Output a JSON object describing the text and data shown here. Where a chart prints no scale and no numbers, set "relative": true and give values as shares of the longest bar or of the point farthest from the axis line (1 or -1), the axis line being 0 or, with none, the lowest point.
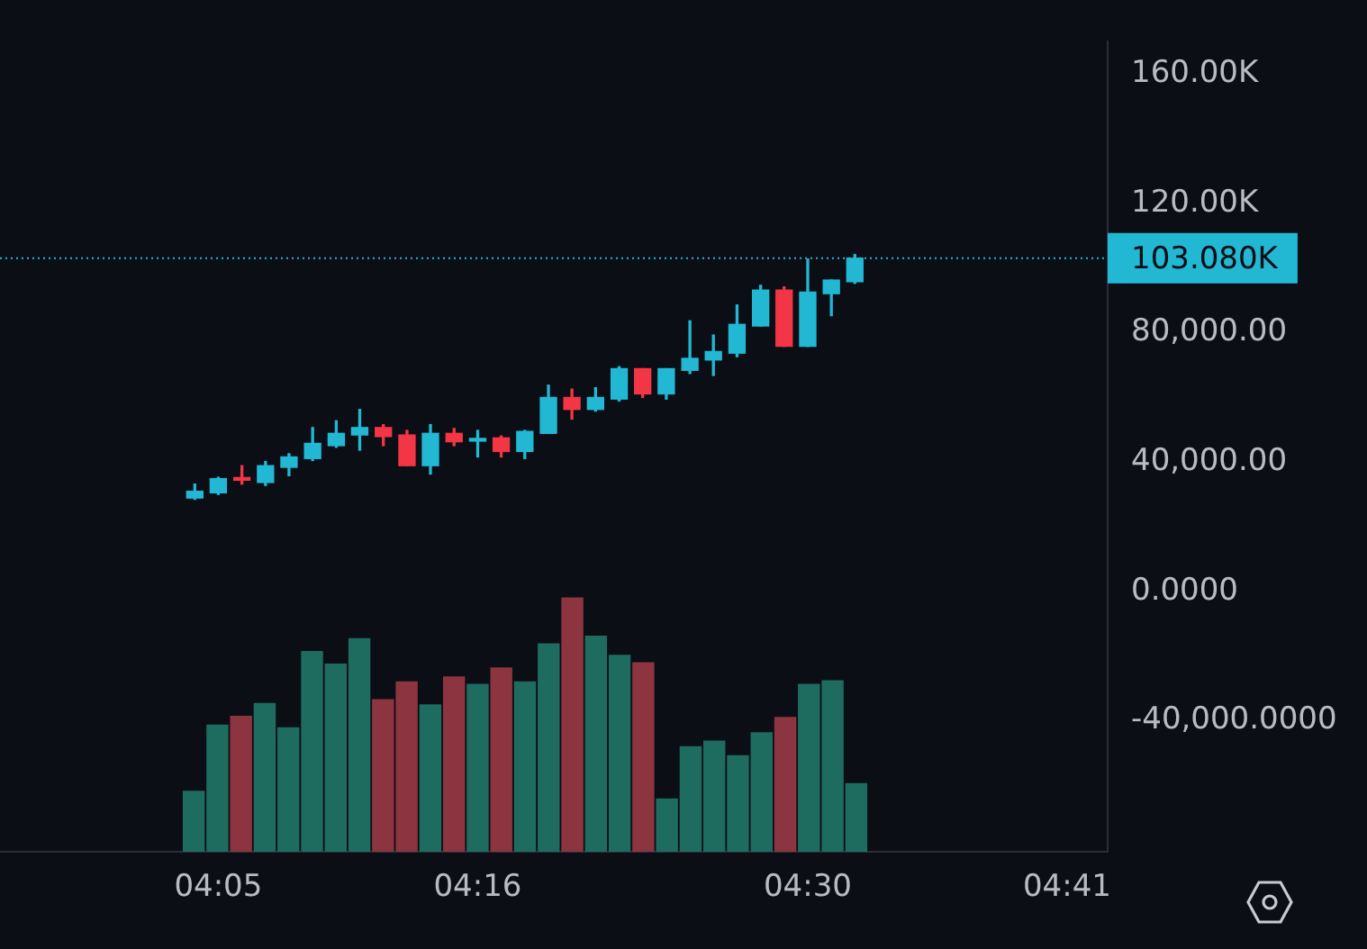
{
  "chart_data": [
    {
      "type": "candlestick",
      "x": [
        4.0667,
        4.0833,
        4.1,
        4.1167,
        4.1333,
        4.15,
        4.1667,
        4.1833,
        4.2,
        4.2167,
        4.2333,
        4.25,
        4.2667,
        4.2833,
        4.3,
        4.3167,
        4.3333,
        4.35,
        4.3667,
        4.3833,
        4.4,
        4.4167,
        4.4333,
        4.45,
        4.4667,
        4.4833,
        4.5,
        4.5167,
        4.5333
      ],
      "xlim": [
        3.929,
        4.712
      ],
      "xticks": [
        {
          "value": 4.0833,
          "label": "04:05"
        },
        {
          "value": 4.2667,
          "label": "04:16"
        },
        {
          "value": 4.5,
          "label": "04:30"
        },
        {
          "value": 4.6833,
          "label": "04:41"
        }
      ],
      "ylim": [
        -80500,
        170000
      ],
      "yticks": [
        {
          "value": -40000,
          "label": "-40,000.0000"
        },
        {
          "value": 0,
          "label": "0.0000"
        },
        {
          "value": 40000,
          "label": "40,000.00"
        },
        {
          "value": 80000,
          "label": "80,000.00"
        },
        {
          "value": 120000,
          "label": "120.00K"
        },
        {
          "value": 160000,
          "label": "160.00K"
        }
      ],
      "grid": false,
      "legend": false,
      "ref_lines": [
        {
          "axis": "y",
          "value": 103080,
          "label": "103.080K",
          "color": "#22b8d4",
          "line_style": "dotted"
        }
      ],
      "ohlc": [
        [
          28900,
          33200,
          28500,
          31000
        ],
        [
          30500,
          35300,
          30000,
          34900
        ],
        [
          34900,
          38900,
          33200,
          34400
        ],
        [
          33700,
          40200,
          32800,
          38900
        ],
        [
          38400,
          42600,
          35800,
          41600
        ],
        [
          41100,
          50700,
          40500,
          45800
        ],
        [
          45100,
          52800,
          44600,
          48900
        ],
        [
          48400,
          56300,
          43700,
          50700
        ],
        [
          50700,
          51600,
          45100,
          47900
        ],
        [
          48400,
          49800,
          38900,
          38900
        ],
        [
          38900,
          51600,
          36300,
          48900
        ],
        [
          48900,
          50400,
          45100,
          46300
        ],
        [
          46500,
          49800,
          41600,
          47200
        ],
        [
          47500,
          48100,
          41600,
          43300
        ],
        [
          43300,
          49800,
          41100,
          49500
        ],
        [
          48900,
          63800,
          48900,
          60000
        ],
        [
          60000,
          62600,
          53300,
          56300
        ],
        [
          56300,
          63000,
          55800,
          60000
        ],
        [
          59500,
          69500,
          58900,
          68900
        ],
        [
          68900,
          68900,
          60000,
          61100
        ],
        [
          61100,
          68900,
          59500,
          68900
        ],
        [
          68400,
          83700,
          67400,
          72100
        ],
        [
          71600,
          79300,
          66800,
          74200
        ],
        [
          73700,
          88600,
          72600,
          82600
        ],
        [
          82100,
          94700,
          82100,
          93200
        ],
        [
          93200,
          94200,
          75800,
          75800
        ],
        [
          75800,
          102800,
          75800,
          92600
        ],
        [
          92100,
          96300,
          85300,
          96300
        ],
        [
          95800,
          104200,
          95300,
          103080
        ]
      ],
      "colors": [
        "#22b8d4",
        "#22b8d4",
        "#f23645",
        "#22b8d4",
        "#22b8d4",
        "#22b8d4",
        "#22b8d4",
        "#22b8d4",
        "#f23645",
        "#f23645",
        "#22b8d4",
        "#f23645",
        "#22b8d4",
        "#f23645",
        "#22b8d4",
        "#22b8d4",
        "#f23645",
        "#22b8d4",
        "#22b8d4",
        "#f23645",
        "#22b8d4",
        "#22b8d4",
        "#22b8d4",
        "#22b8d4",
        "#22b8d4",
        "#f23645",
        "#22b8d4",
        "#22b8d4",
        "#22b8d4"
      ]
    },
    {
      "type": "bar",
      "relative": true,
      "tick_labels": false,
      "legend": false,
      "categories": [
        null,
        null,
        null,
        null,
        null,
        null,
        null,
        null,
        null,
        null,
        null,
        null,
        null,
        null,
        null,
        null,
        null,
        null,
        null,
        null,
        null,
        null,
        null,
        null,
        null,
        null,
        null,
        null,
        null
      ],
      "values": [
        0.24,
        0.5,
        0.535,
        0.585,
        0.49,
        0.79,
        0.74,
        0.84,
        0.6,
        0.67,
        0.58,
        0.69,
        0.66,
        0.725,
        0.67,
        0.82,
        1,
        0.85,
        0.775,
        0.745,
        0.21,
        0.415,
        0.437,
        0.38,
        0.47,
        0.53,
        0.66,
        0.675,
        0.27
      ],
      "colors": [
        "#1e6b60",
        "#1e6b60",
        "#8c3440",
        "#1e6b60",
        "#1e6b60",
        "#1e6b60",
        "#1e6b60",
        "#1e6b60",
        "#8c3440",
        "#8c3440",
        "#1e6b60",
        "#8c3440",
        "#1e6b60",
        "#8c3440",
        "#1e6b60",
        "#1e6b60",
        "#8c3440",
        "#1e6b60",
        "#1e6b60",
        "#8c3440",
        "#1e6b60",
        "#1e6b60",
        "#1e6b60",
        "#1e6b60",
        "#1e6b60",
        "#8c3440",
        "#1e6b60",
        "#1e6b60",
        "#1e6b60"
      ]
    }
  ]
}
